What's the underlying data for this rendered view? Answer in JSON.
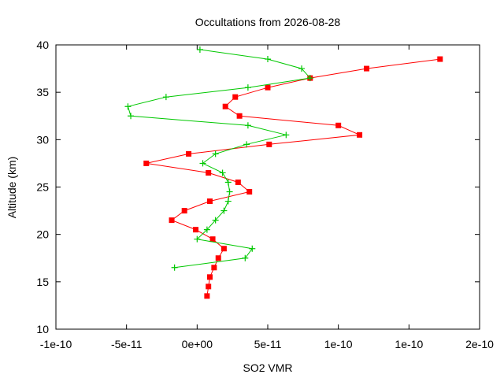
{
  "chart_data": {
    "type": "line",
    "title": "Occultations from 2026-08-28",
    "xlabel": "SO2 VMR",
    "ylabel": "Altitude (km)",
    "xlim": [
      -1e-10,
      2e-10
    ],
    "ylim": [
      10,
      40
    ],
    "x_ticks": [
      -1e-10,
      -5e-11,
      0,
      5e-11,
      1e-10,
      1.5e-10,
      2e-10
    ],
    "x_tick_labels": [
      "-1e-10",
      "-5e-11",
      "0e+00",
      "5e-11",
      "1e-10",
      "1e-10",
      "2e-10"
    ],
    "y_ticks": [
      10,
      15,
      20,
      25,
      30,
      35,
      40
    ],
    "y_tick_labels": [
      "10",
      "15",
      "20",
      "25",
      "30",
      "35",
      "40"
    ],
    "grid": false,
    "legend": "none",
    "series": [
      {
        "color": "#ff0000",
        "marker": "square",
        "points": [
          {
            "x": 7e-12,
            "y": 13.5
          },
          {
            "x": 8e-12,
            "y": 14.5
          },
          {
            "x": 9e-12,
            "y": 15.5
          },
          {
            "x": 1.2e-11,
            "y": 16.5
          },
          {
            "x": 1.5e-11,
            "y": 17.5
          },
          {
            "x": 1.9e-11,
            "y": 18.5
          },
          {
            "x": 1.1e-11,
            "y": 19.5
          },
          {
            "x": -1e-12,
            "y": 20.5
          },
          {
            "x": -1.8e-11,
            "y": 21.5
          },
          {
            "x": -9e-12,
            "y": 22.5
          },
          {
            "x": 9e-12,
            "y": 23.5
          },
          {
            "x": 3.7e-11,
            "y": 24.5
          },
          {
            "x": 2.9e-11,
            "y": 25.5
          },
          {
            "x": 8e-12,
            "y": 26.5
          },
          {
            "x": -3.6e-11,
            "y": 27.5
          },
          {
            "x": -6e-12,
            "y": 28.5
          },
          {
            "x": 5.1e-11,
            "y": 29.5
          },
          {
            "x": 1.15e-10,
            "y": 30.5
          },
          {
            "x": 1e-10,
            "y": 31.5
          },
          {
            "x": 3e-11,
            "y": 32.5
          },
          {
            "x": 2e-11,
            "y": 33.5
          },
          {
            "x": 2.7e-11,
            "y": 34.5
          },
          {
            "x": 5e-11,
            "y": 35.5
          },
          {
            "x": 8e-11,
            "y": 36.5
          },
          {
            "x": 1.2e-10,
            "y": 37.5
          },
          {
            "x": 1.72e-10,
            "y": 38.5
          }
        ]
      },
      {
        "color": "#00c800",
        "marker": "plus",
        "points": [
          {
            "x": -1.6e-11,
            "y": 16.5
          },
          {
            "x": 3.4e-11,
            "y": 17.5
          },
          {
            "x": 3.9e-11,
            "y": 18.5
          },
          {
            "x": 0.0,
            "y": 19.5
          },
          {
            "x": 7e-12,
            "y": 20.5
          },
          {
            "x": 1.3e-11,
            "y": 21.5
          },
          {
            "x": 1.9e-11,
            "y": 22.5
          },
          {
            "x": 2.2e-11,
            "y": 23.5
          },
          {
            "x": 2.3e-11,
            "y": 24.5
          },
          {
            "x": 2.2e-11,
            "y": 25.5
          },
          {
            "x": 1.8e-11,
            "y": 26.5
          },
          {
            "x": 4e-12,
            "y": 27.5
          },
          {
            "x": 1.3e-11,
            "y": 28.5
          },
          {
            "x": 3.5e-11,
            "y": 29.5
          },
          {
            "x": 6.3e-11,
            "y": 30.5
          },
          {
            "x": 3.6e-11,
            "y": 31.5
          },
          {
            "x": -4.7e-11,
            "y": 32.5
          },
          {
            "x": -4.9e-11,
            "y": 33.5
          },
          {
            "x": -2.2e-11,
            "y": 34.5
          },
          {
            "x": 3.6e-11,
            "y": 35.5
          },
          {
            "x": 8e-11,
            "y": 36.5
          },
          {
            "x": 7.4e-11,
            "y": 37.5
          },
          {
            "x": 5e-11,
            "y": 38.5
          },
          {
            "x": 2e-12,
            "y": 39.5
          }
        ]
      }
    ]
  }
}
